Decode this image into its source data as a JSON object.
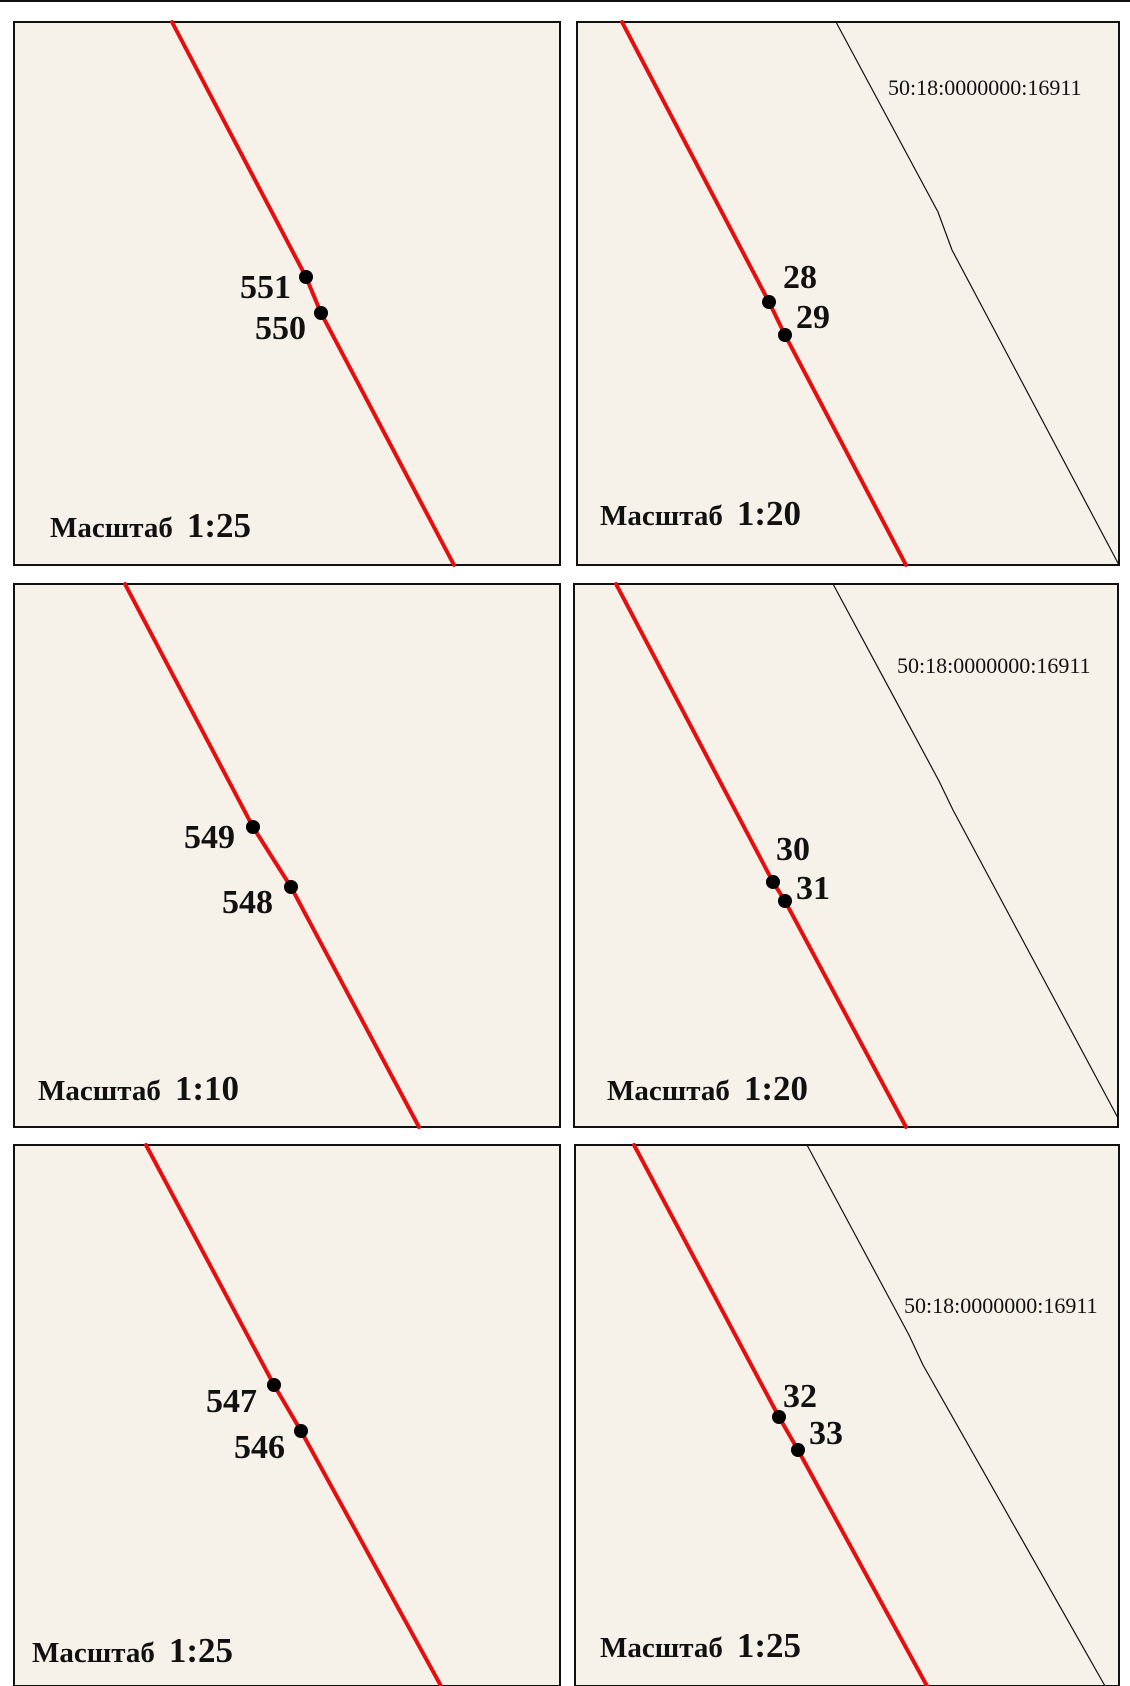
{
  "scale_word": "Масштаб",
  "panels": [
    {
      "id": "p1",
      "scale": "1:25",
      "points": [
        {
          "label": "551"
        },
        {
          "label": "550"
        }
      ],
      "cadastral_label": ""
    },
    {
      "id": "p2",
      "scale": "1:20",
      "points": [
        {
          "label": "28"
        },
        {
          "label": "29"
        }
      ],
      "cadastral_label": "50:18:0000000:16911"
    },
    {
      "id": "p3",
      "scale": "1:10",
      "points": [
        {
          "label": "549"
        },
        {
          "label": "548"
        }
      ],
      "cadastral_label": ""
    },
    {
      "id": "p4",
      "scale": "1:20",
      "points": [
        {
          "label": "30"
        },
        {
          "label": "31"
        }
      ],
      "cadastral_label": "50:18:0000000:16911"
    },
    {
      "id": "p5",
      "scale": "1:25",
      "points": [
        {
          "label": "547"
        },
        {
          "label": "546"
        }
      ],
      "cadastral_label": ""
    },
    {
      "id": "p6",
      "scale": "1:25",
      "points": [
        {
          "label": "32"
        },
        {
          "label": "33"
        }
      ],
      "cadastral_label": "50:18:0000000:16911"
    }
  ],
  "colors": {
    "boundary_red": "#e50f0f",
    "panel_background": "#f6f2ea",
    "frame": "#111111"
  }
}
